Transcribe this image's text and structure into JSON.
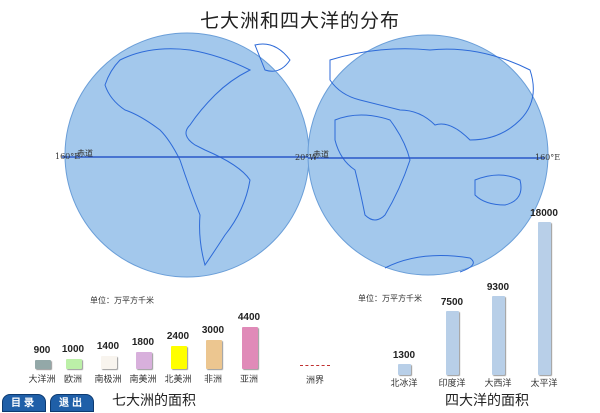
{
  "title": "七大洲和四大洋的分布",
  "globe": {
    "left_lon": "160°E",
    "left_eq": "赤道",
    "center_lon": "20°W",
    "right_eq": "赤道",
    "right_lon": "160°E",
    "ocean_color": "#a3c8ec",
    "line_color": "#2b58c8"
  },
  "continents": {
    "unit": "单位：万平方千米",
    "title": "七大洲的面积",
    "items": [
      {
        "name": "大洋洲",
        "value": "900",
        "color": "#93a8a8"
      },
      {
        "name": "欧洲",
        "value": "1000",
        "color": "#bcf0a8"
      },
      {
        "name": "南极洲",
        "value": "1400",
        "color": "#f8f4ee"
      },
      {
        "name": "南美洲",
        "value": "1800",
        "color": "#d8b0dc"
      },
      {
        "name": "北美洲",
        "value": "2400",
        "color": "#ffff00"
      },
      {
        "name": "非洲",
        "value": "3000",
        "color": "#ecc690"
      },
      {
        "name": "亚洲",
        "value": "4400",
        "color": "#e08ab8"
      }
    ]
  },
  "legend": {
    "boundary": "洲界"
  },
  "oceans": {
    "unit": "单位：万平方千米",
    "title": "四大洋的面积",
    "color": "#b8cfe8",
    "items": [
      {
        "name": "北冰洋",
        "value": "1300"
      },
      {
        "name": "印度洋",
        "value": "7500"
      },
      {
        "name": "大西洋",
        "value": "9300"
      },
      {
        "name": "太平洋",
        "value": "18000"
      }
    ]
  },
  "buttons": {
    "menu": "目录",
    "exit": "退出"
  }
}
